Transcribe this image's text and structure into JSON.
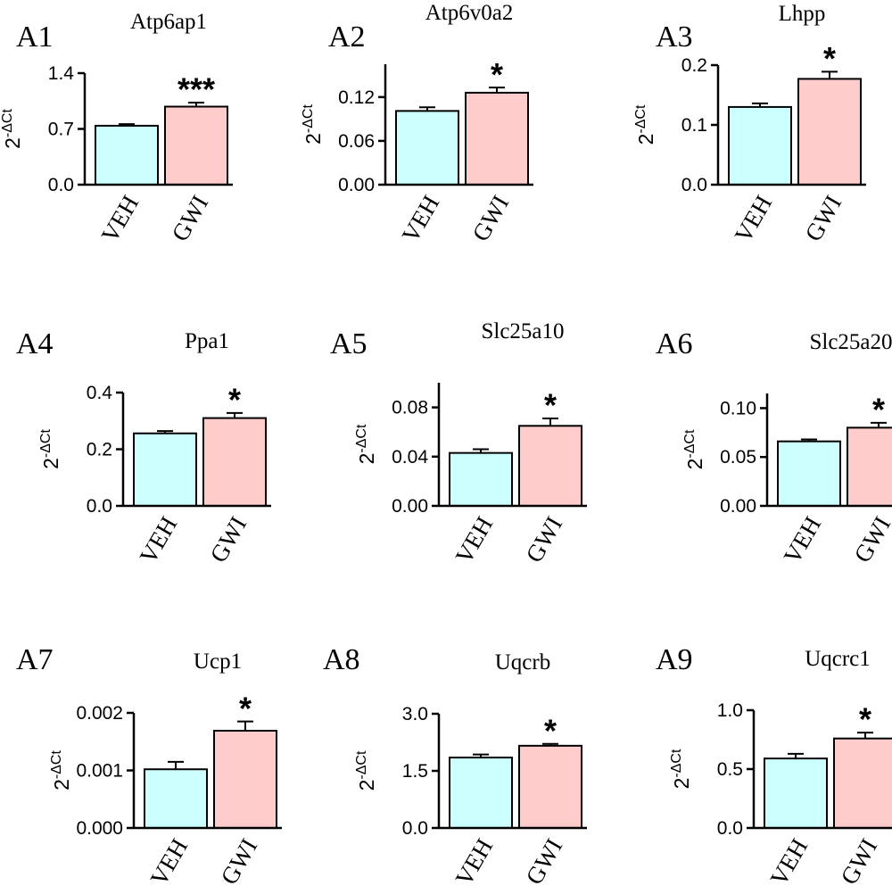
{
  "chart_data": [
    {
      "panel": "A1",
      "type": "bar",
      "title": "Atp6ap1",
      "ylabel": "2",
      "ylabel_sup": "-ΔCt",
      "categories": [
        "VEH",
        "GWI"
      ],
      "values": [
        0.74,
        0.98
      ],
      "errors": [
        0.02,
        0.05
      ],
      "colors": [
        "#ccffff",
        "#ffcccc"
      ],
      "ylim": [
        0,
        1.4
      ],
      "yticks": [
        0,
        0.7,
        1.4
      ],
      "ytick_labels": [
        "0.0",
        "0.7",
        "1.4"
      ],
      "significance": "***"
    },
    {
      "panel": "A2",
      "type": "bar",
      "title": "Atp6v0a2",
      "ylabel": "2",
      "ylabel_sup": "-ΔCt",
      "categories": [
        "VEH",
        "GWI"
      ],
      "values": [
        0.101,
        0.126
      ],
      "errors": [
        0.005,
        0.007
      ],
      "colors": [
        "#ccffff",
        "#ffcccc"
      ],
      "ylim": [
        0,
        0.165
      ],
      "yticks": [
        0,
        0.06,
        0.12
      ],
      "ytick_labels": [
        "0.00",
        "0.06",
        "0.12"
      ],
      "significance": "*"
    },
    {
      "panel": "A3",
      "type": "bar",
      "title": "Lhpp",
      "ylabel": "2",
      "ylabel_sup": "-ΔCt",
      "categories": [
        "VEH",
        "GWI"
      ],
      "values": [
        0.13,
        0.177
      ],
      "errors": [
        0.006,
        0.012
      ],
      "colors": [
        "#ccffff",
        "#ffcccc"
      ],
      "ylim": [
        0,
        0.2
      ],
      "yticks": [
        0,
        0.1,
        0.2
      ],
      "ytick_labels": [
        "0.0",
        "0.1",
        "0.2"
      ],
      "significance": "*"
    },
    {
      "panel": "A4",
      "type": "bar",
      "title": "Ppa1",
      "ylabel": "2",
      "ylabel_sup": "-ΔCt",
      "categories": [
        "VEH",
        "GWI"
      ],
      "values": [
        0.256,
        0.31
      ],
      "errors": [
        0.008,
        0.018
      ],
      "colors": [
        "#ccffff",
        "#ffcccc"
      ],
      "ylim": [
        0,
        0.4
      ],
      "yticks": [
        0,
        0.2,
        0.4
      ],
      "ytick_labels": [
        "0.0",
        "0.2",
        "0.4"
      ],
      "significance": "*"
    },
    {
      "panel": "A5",
      "type": "bar",
      "title": "Slc25a10",
      "ylabel": "2",
      "ylabel_sup": "-ΔCt",
      "categories": [
        "VEH",
        "GWI"
      ],
      "values": [
        0.043,
        0.065
      ],
      "errors": [
        0.003,
        0.006
      ],
      "colors": [
        "#ccffff",
        "#ffcccc"
      ],
      "ylim": [
        0,
        0.1
      ],
      "yticks": [
        0,
        0.04,
        0.08
      ],
      "ytick_labels": [
        "0.00",
        "0.04",
        "0.08"
      ],
      "significance": "*"
    },
    {
      "panel": "A6",
      "type": "bar",
      "title": "Slc25a20",
      "ylabel": "2",
      "ylabel_sup": "-ΔCt",
      "categories": [
        "VEH",
        "GWI"
      ],
      "values": [
        0.066,
        0.08
      ],
      "errors": [
        0.002,
        0.005
      ],
      "colors": [
        "#ccffff",
        "#ffcccc"
      ],
      "ylim": [
        0,
        0.115
      ],
      "yticks": [
        0,
        0.05,
        0.1
      ],
      "ytick_labels": [
        "0.00",
        "0.05",
        "0.10"
      ],
      "significance": "*"
    },
    {
      "panel": "A7",
      "type": "bar",
      "title": "Ucp1",
      "ylabel": "2",
      "ylabel_sup": "-ΔCt",
      "categories": [
        "VEH",
        "GWI"
      ],
      "values": [
        0.00102,
        0.00169
      ],
      "errors": [
        0.00013,
        0.00016
      ],
      "colors": [
        "#ccffff",
        "#ffcccc"
      ],
      "ylim": [
        0,
        0.002
      ],
      "yticks": [
        0,
        0.001,
        0.002
      ],
      "ytick_labels": [
        "0.000",
        "0.001",
        "0.002"
      ],
      "significance": "*"
    },
    {
      "panel": "A8",
      "type": "bar",
      "title": "Uqcrb",
      "ylabel": "2",
      "ylabel_sup": "-ΔCt",
      "categories": [
        "VEH",
        "GWI"
      ],
      "values": [
        1.85,
        2.16
      ],
      "errors": [
        0.08,
        0.05
      ],
      "colors": [
        "#ccffff",
        "#ffcccc"
      ],
      "ylim": [
        0,
        3.0
      ],
      "yticks": [
        0,
        1.5,
        3.0
      ],
      "ytick_labels": [
        "0.0",
        "1.5",
        "3.0"
      ],
      "significance": "*"
    },
    {
      "panel": "A9",
      "type": "bar",
      "title": "Uqcrc1",
      "ylabel": "2",
      "ylabel_sup": "-ΔCt",
      "categories": [
        "VEH",
        "GWI"
      ],
      "values": [
        0.59,
        0.76
      ],
      "errors": [
        0.04,
        0.05
      ],
      "colors": [
        "#ccffff",
        "#ffcccc"
      ],
      "ylim": [
        0,
        1.0
      ],
      "yticks": [
        0,
        0.5,
        1.0
      ],
      "ytick_labels": [
        "0.0",
        "0.5",
        "1.0"
      ],
      "significance": "*"
    }
  ]
}
